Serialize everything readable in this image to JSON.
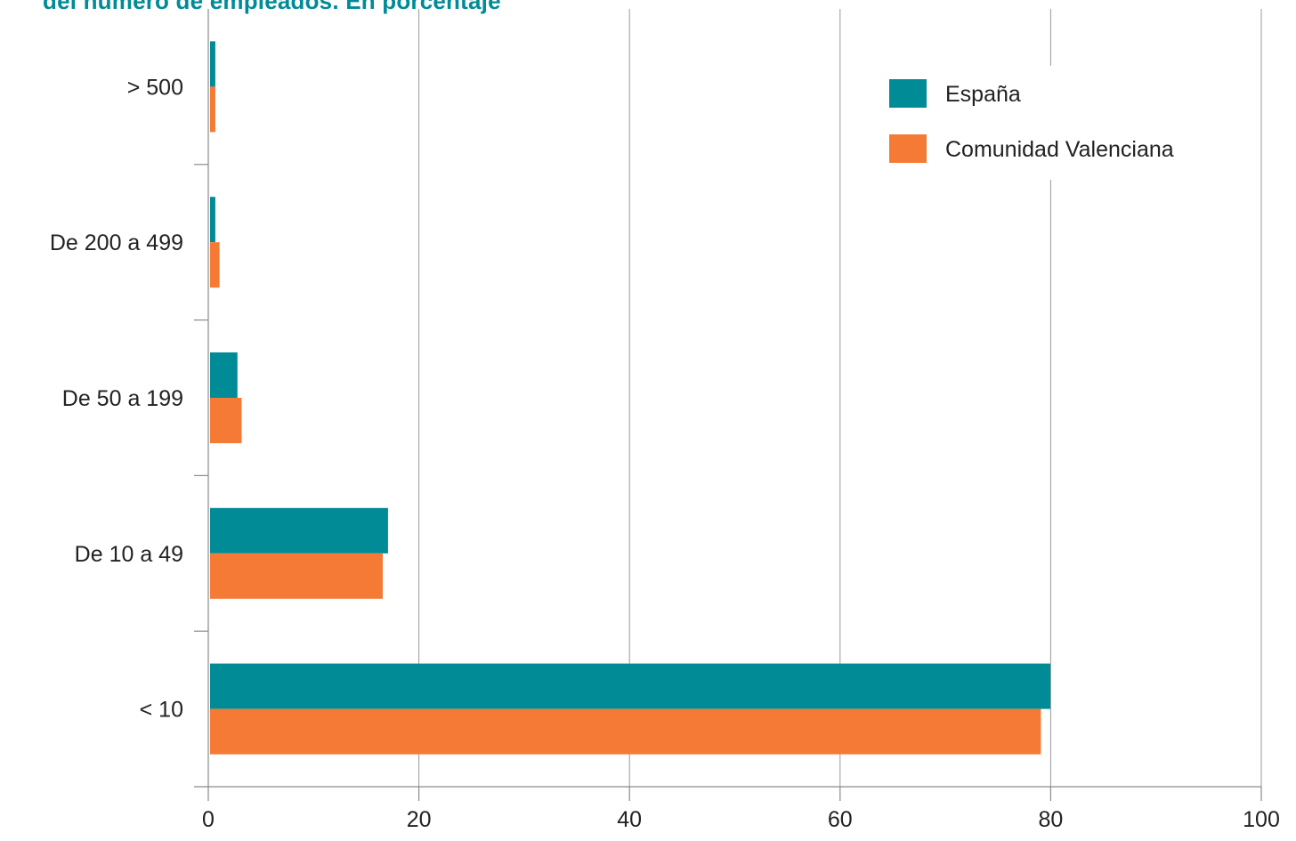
{
  "chart_data": {
    "type": "bar",
    "orientation": "horizontal",
    "title": "del número de empleados. En porcentaje",
    "xlabel": "",
    "ylabel": "",
    "xlim": [
      0,
      100
    ],
    "xticks": [
      0,
      20,
      40,
      60,
      80,
      100
    ],
    "categories": [
      "> 500",
      "De 200 a 499",
      "De 50 a 199",
      "De 10 a 49",
      "< 10"
    ],
    "series": [
      {
        "name": "España",
        "color": "#008b96",
        "values": [
          0.5,
          0.5,
          2.6,
          16.9,
          79.8
        ]
      },
      {
        "name": "Comunidad Valenciana",
        "color": "#f47a35",
        "values": [
          0.5,
          0.9,
          3.0,
          16.4,
          78.9
        ]
      }
    ],
    "grid": "vertical",
    "legend_position": "top-right"
  }
}
